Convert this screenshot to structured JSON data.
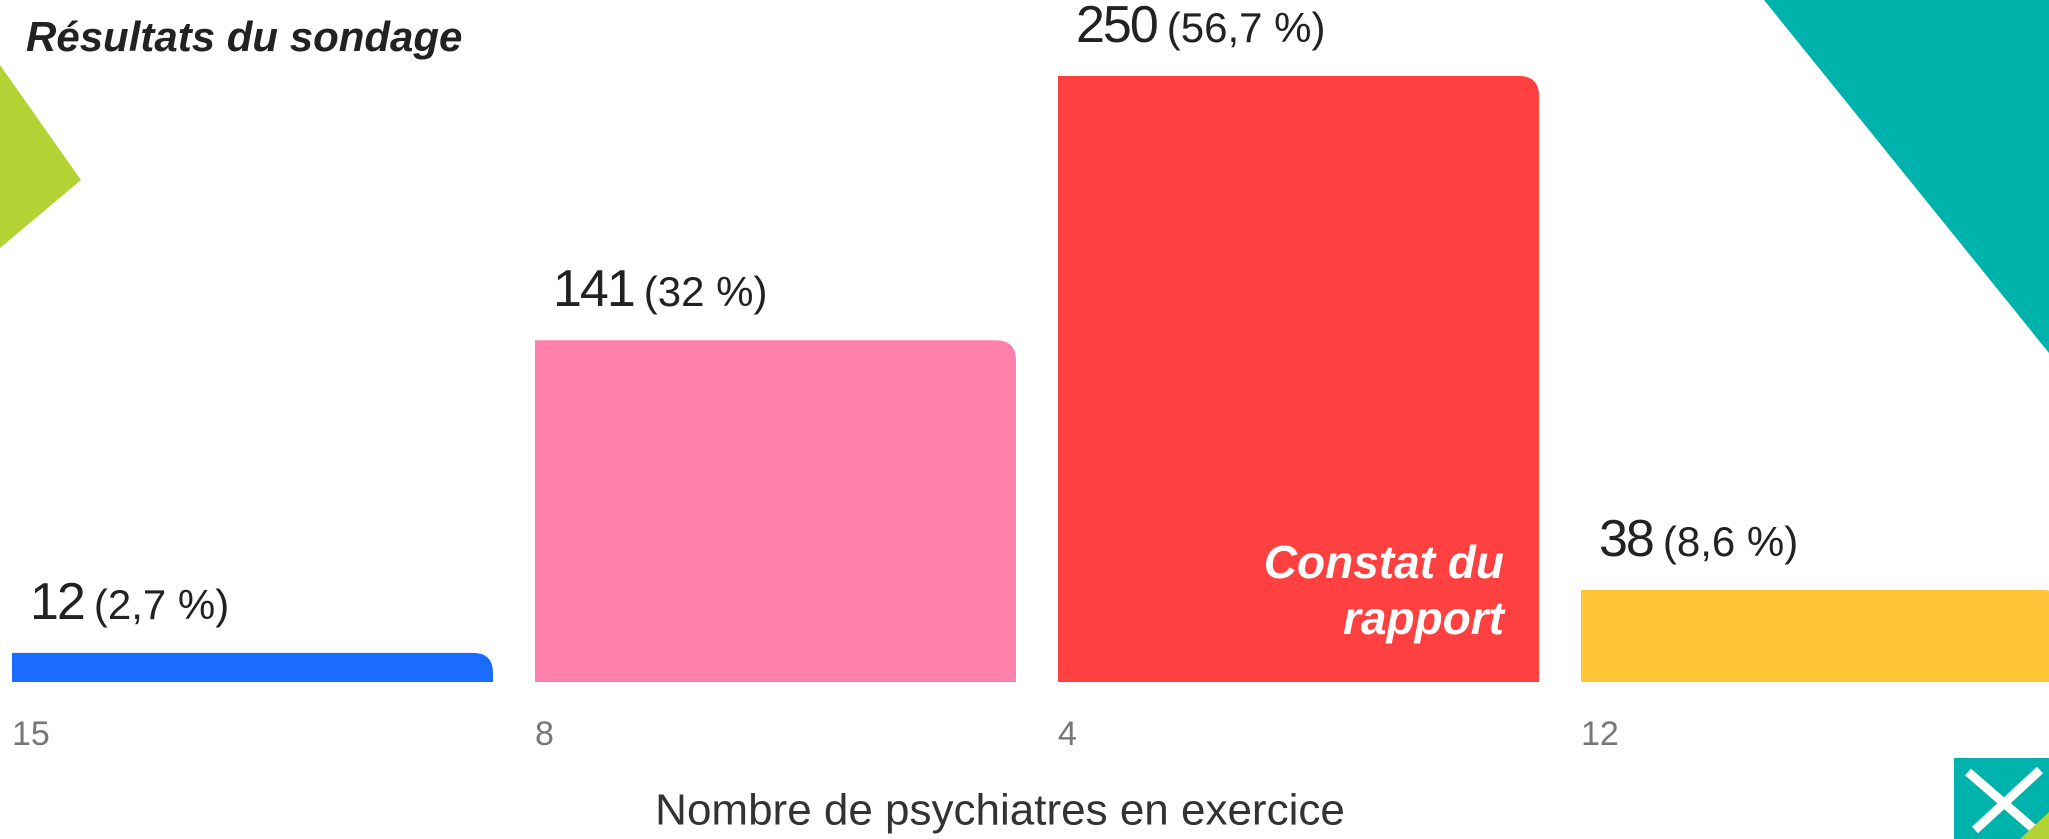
{
  "chart_data": {
    "type": "bar",
    "title": "Résultats du sondage",
    "categories": [
      "15",
      "8",
      "4",
      "12"
    ],
    "values": [
      12,
      141,
      250,
      38
    ],
    "shares": [
      "(2,7 %)",
      "(32 %)",
      "(56,7 %)",
      "(8,6 %)"
    ],
    "colors": [
      "#1a6bff",
      "#ff80ab",
      "#ff4040",
      "#ffc537"
    ],
    "x_label": "Nombre de psychiatres en exercice",
    "annotation": {
      "lines": [
        "Constat du",
        "rapport"
      ],
      "category": 2
    }
  }
}
